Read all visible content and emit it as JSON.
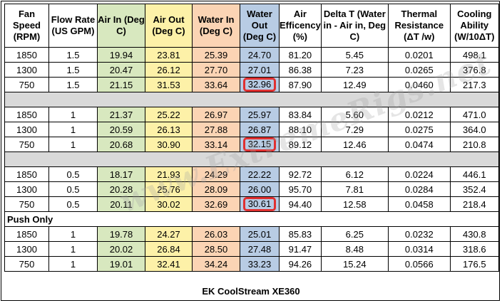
{
  "headers": {
    "fan_speed": "Fan Speed (RPM)",
    "flow_rate": "Flow Rate (US GPM)",
    "air_in": "Air In (Deg C)",
    "air_out": "Air Out (Deg C)",
    "water_in": "Water In (Deg C)",
    "water_out": "Water Out (Deg C)",
    "air_efficiency": "Air Efficency (%)",
    "delta_t": "Delta T (Water in - Air in, Deg C)",
    "thermal_resistance": "Thermal Resistance (ΔT /w)",
    "cooling_ability": "Cooling Ability (W/10ΔT)"
  },
  "groups": [
    {
      "label": "",
      "rows": [
        {
          "fan_speed": "1850",
          "flow_rate": "1.5",
          "air_in": "19.94",
          "air_out": "23.81",
          "water_in": "25.39",
          "water_out": "24.70",
          "air_efficiency": "81.20",
          "delta_t": "5.45",
          "thermal_resistance": "0.0201",
          "cooling_ability": "498.1"
        },
        {
          "fan_speed": "1300",
          "flow_rate": "1.5",
          "air_in": "20.47",
          "air_out": "26.12",
          "water_in": "27.70",
          "water_out": "27.01",
          "air_efficiency": "86.38",
          "delta_t": "7.23",
          "thermal_resistance": "0.0265",
          "cooling_ability": "376.8"
        },
        {
          "fan_speed": "750",
          "flow_rate": "1.5",
          "air_in": "21.15",
          "air_out": "31.53",
          "water_in": "33.64",
          "water_out": "32.96",
          "air_efficiency": "87.90",
          "delta_t": "12.49",
          "thermal_resistance": "0.0460",
          "cooling_ability": "217.3"
        }
      ]
    },
    {
      "label": "",
      "rows": [
        {
          "fan_speed": "1850",
          "flow_rate": "1",
          "air_in": "21.37",
          "air_out": "25.22",
          "water_in": "26.97",
          "water_out": "25.97",
          "air_efficiency": "83.84",
          "delta_t": "5.60",
          "thermal_resistance": "0.0212",
          "cooling_ability": "471.0"
        },
        {
          "fan_speed": "1300",
          "flow_rate": "1",
          "air_in": "20.59",
          "air_out": "26.13",
          "water_in": "27.88",
          "water_out": "26.87",
          "air_efficiency": "88.10",
          "delta_t": "7.29",
          "thermal_resistance": "0.0275",
          "cooling_ability": "364.0"
        },
        {
          "fan_speed": "750",
          "flow_rate": "1",
          "air_in": "20.68",
          "air_out": "30.90",
          "water_in": "33.14",
          "water_out": "32.15",
          "air_efficiency": "89.12",
          "delta_t": "12.46",
          "thermal_resistance": "0.0474",
          "cooling_ability": "210.8"
        }
      ]
    },
    {
      "label": "",
      "rows": [
        {
          "fan_speed": "1850",
          "flow_rate": "0.5",
          "air_in": "18.17",
          "air_out": "21.93",
          "water_in": "24.29",
          "water_out": "22.22",
          "air_efficiency": "92.72",
          "delta_t": "6.12",
          "thermal_resistance": "0.0224",
          "cooling_ability": "446.1"
        },
        {
          "fan_speed": "1300",
          "flow_rate": "0.5",
          "air_in": "20.28",
          "air_out": "25.76",
          "water_in": "28.09",
          "water_out": "26.00",
          "air_efficiency": "95.70",
          "delta_t": "7.81",
          "thermal_resistance": "0.0284",
          "cooling_ability": "352.4"
        },
        {
          "fan_speed": "750",
          "flow_rate": "0.5",
          "air_in": "20.11",
          "air_out": "30.02",
          "water_in": "32.69",
          "water_out": "30.61",
          "air_efficiency": "94.40",
          "delta_t": "12.58",
          "thermal_resistance": "0.0458",
          "cooling_ability": "218.4"
        }
      ]
    },
    {
      "label": "Push Only",
      "rows": [
        {
          "fan_speed": "1850",
          "flow_rate": "1",
          "air_in": "19.78",
          "air_out": "24.27",
          "water_in": "26.03",
          "water_out": "25.01",
          "air_efficiency": "85.83",
          "delta_t": "6.25",
          "thermal_resistance": "0.0232",
          "cooling_ability": "430.8"
        },
        {
          "fan_speed": "1300",
          "flow_rate": "1",
          "air_in": "20.02",
          "air_out": "26.84",
          "water_in": "28.50",
          "water_out": "27.48",
          "air_efficiency": "91.47",
          "delta_t": "8.48",
          "thermal_resistance": "0.0314",
          "cooling_ability": "318.6"
        },
        {
          "fan_speed": "750",
          "flow_rate": "1",
          "air_in": "19.01",
          "air_out": "32.41",
          "water_in": "34.24",
          "water_out": "33.23",
          "air_efficiency": "94.26",
          "delta_t": "15.24",
          "thermal_resistance": "0.0566",
          "cooling_ability": "176.5"
        }
      ]
    }
  ],
  "highlighted_cells": [
    "32.96",
    "32.15",
    "30.61"
  ],
  "highlight_color": "#e03030",
  "column_colors": {
    "air_in": "#d8e8bf",
    "air_out": "#fdf1a8",
    "water_in": "#fbd4b4",
    "water_out": "#b8cce4",
    "separator": "#d9d9d9"
  },
  "watermark": "www.ExtremeRigs.net",
  "caption": "EK CoolStream XE360"
}
